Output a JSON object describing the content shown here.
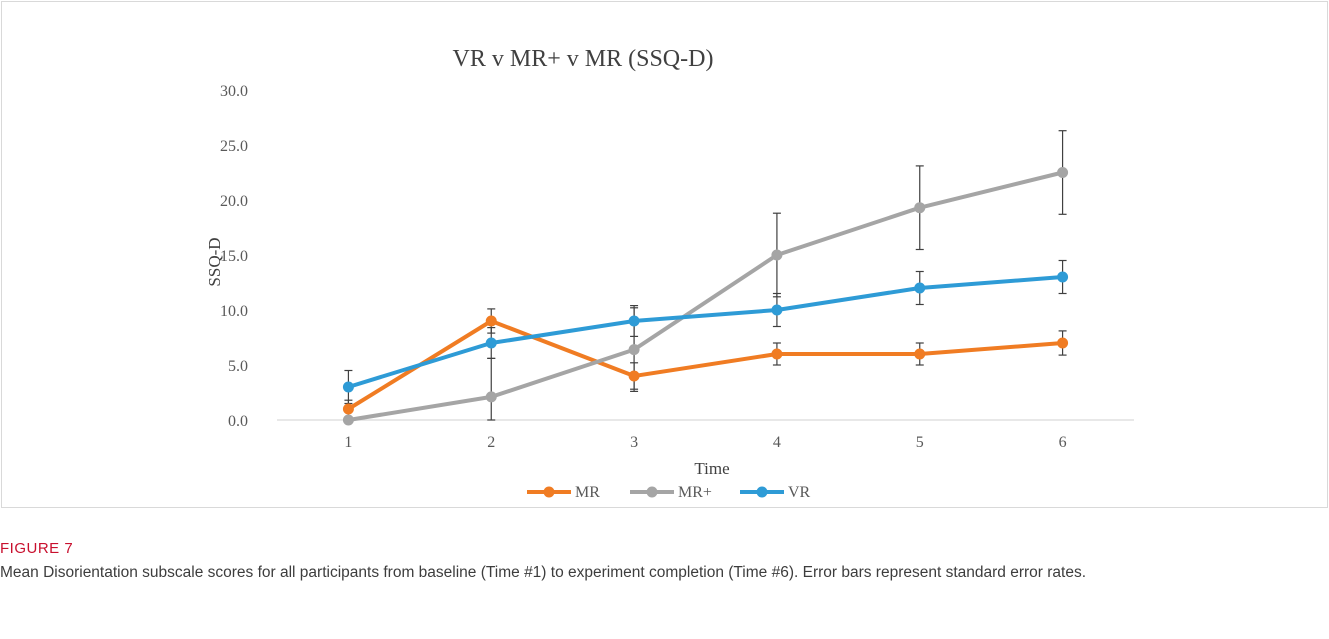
{
  "figure": {
    "label": "FIGURE 7",
    "caption": "Mean Disorientation subscale scores for all participants from baseline (Time #1) to experiment completion (Time #6). Error bars represent standard error rates."
  },
  "chart_data": {
    "type": "line",
    "title": "VR v MR+ v MR (SSQ-D)",
    "xlabel": "Time",
    "ylabel": "SSQ-D",
    "categories": [
      "1",
      "2",
      "3",
      "4",
      "5",
      "6"
    ],
    "ylim": [
      0,
      30
    ],
    "yticks": [
      "0.0",
      "5.0",
      "10.0",
      "15.0",
      "20.0",
      "25.0",
      "30.0"
    ],
    "grid": false,
    "legend_position": "bottom",
    "series": [
      {
        "name": "MR",
        "color": "#f07c23",
        "values": [
          1.0,
          9.0,
          4.0,
          6.0,
          6.0,
          7.0
        ],
        "error": [
          0.8,
          1.1,
          1.2,
          1.0,
          1.0,
          1.1
        ]
      },
      {
        "name": "MR+",
        "color": "#a5a5a5",
        "values": [
          0.0,
          2.1,
          6.4,
          15.0,
          19.3,
          22.5
        ],
        "error": [
          0.0,
          3.5,
          3.8,
          3.8,
          3.8,
          3.8
        ]
      },
      {
        "name": "VR",
        "color": "#2e9bd6",
        "values": [
          3.0,
          7.0,
          9.0,
          10.0,
          12.0,
          13.0
        ],
        "error": [
          1.5,
          1.4,
          1.4,
          1.5,
          1.5,
          1.5
        ]
      }
    ]
  }
}
